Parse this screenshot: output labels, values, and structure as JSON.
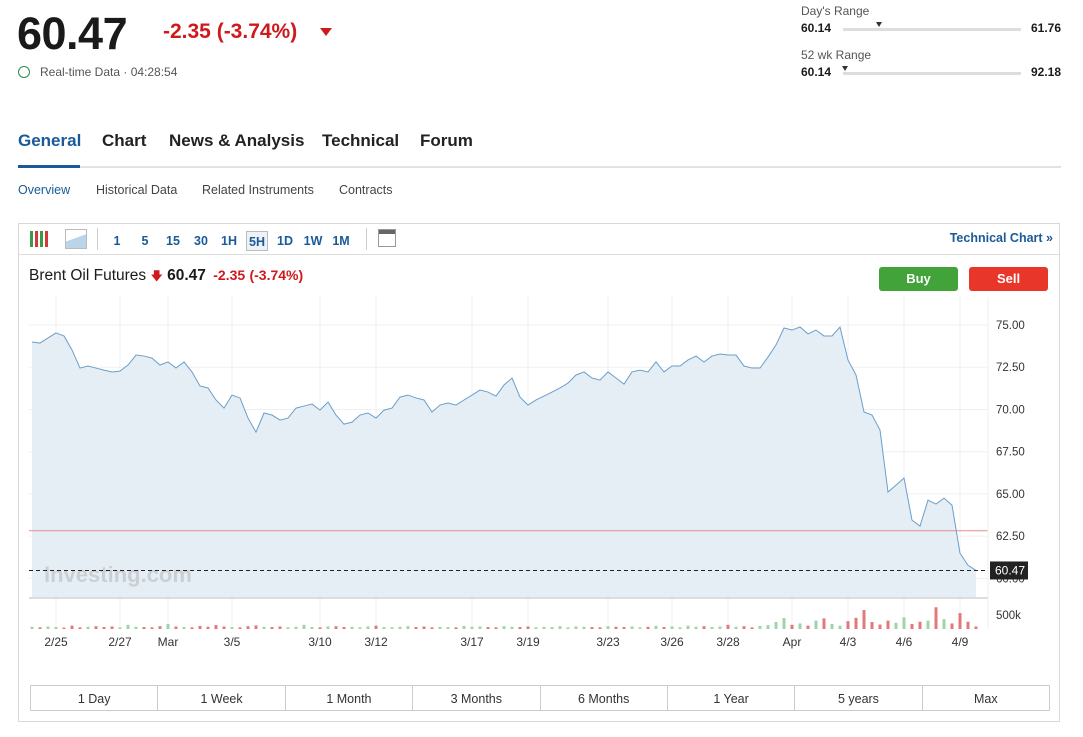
{
  "header": {
    "price": 60.47,
    "change": "-2.35 (-3.74%)",
    "realtime": "Real-time Data · 04:28:54"
  },
  "ranges": [
    {
      "label": "Day's Range",
      "low": 60.14,
      "high": 61.76
    },
    {
      "label": "52 wk Range",
      "low": 60.14,
      "high": 92.18
    }
  ],
  "tabs": [
    "General",
    "Chart",
    "News & Analysis",
    "Technical",
    "Forum"
  ],
  "subtabs": [
    "Overview",
    "Historical Data",
    "Related Instruments",
    "Contracts"
  ],
  "toolbar": {
    "intervals": [
      "1",
      "5",
      "15",
      "30",
      "1H",
      "5H",
      "1D",
      "1W",
      "1M"
    ],
    "selected": "5H",
    "link": "Technical Chart »"
  },
  "instrument": {
    "name": "Brent Oil Futures",
    "price": "60.47",
    "change": "-2.35",
    "percent": "(-3.74%)"
  },
  "buttons": [
    "Buy",
    "Sell"
  ],
  "watermark": "Investing.com",
  "periods": [
    "1 Day",
    "1 Week",
    "1 Month",
    "3 Months",
    "6 Months",
    "1 Year",
    "5 years",
    "Max"
  ],
  "chart_data": {
    "type": "line",
    "fill": true,
    "color": "#6a9ecb",
    "area_color": "#e6eef5",
    "grid": true,
    "categories": [
      null,
      null,
      null,
      "2/25",
      null,
      null,
      null,
      null,
      null,
      null,
      null,
      "2/27",
      null,
      null,
      null,
      null,
      null,
      "Mar",
      null,
      null,
      null,
      null,
      null,
      null,
      null,
      "3/5",
      null,
      null,
      null,
      null,
      null,
      null,
      null,
      null,
      null,
      null,
      "3/10",
      null,
      null,
      null,
      null,
      null,
      null,
      "3/12",
      null,
      null,
      null,
      null,
      null,
      null,
      null,
      null,
      null,
      null,
      null,
      "3/17",
      null,
      null,
      null,
      null,
      null,
      null,
      "3/19",
      null,
      null,
      null,
      null,
      null,
      null,
      null,
      null,
      null,
      "3/23",
      null,
      null,
      null,
      null,
      null,
      null,
      null,
      "3/26",
      null,
      null,
      null,
      null,
      null,
      null,
      "3/28",
      null,
      null,
      null,
      null,
      null,
      null,
      null,
      "Apr",
      null,
      null,
      null,
      null,
      null,
      null,
      "4/3",
      null,
      null,
      null,
      null,
      null,
      null,
      "4/6",
      null,
      null,
      null,
      null,
      null,
      null,
      "4/9",
      null,
      null
    ],
    "values": [
      73.99,
      73.93,
      74.23,
      74.53,
      74.35,
      73.52,
      72.45,
      72.57,
      72.45,
      72.33,
      72.22,
      72.27,
      72.63,
      73.22,
      73.16,
      73.04,
      72.63,
      72.81,
      72.45,
      72.81,
      72.22,
      71.39,
      71.27,
      70.56,
      70.08,
      70.85,
      70.68,
      69.49,
      68.66,
      69.79,
      69.67,
      69.37,
      69.49,
      70.08,
      70.2,
      70.32,
      69.96,
      70.44,
      69.67,
      69.13,
      69.25,
      69.67,
      69.79,
      69.49,
      69.96,
      70.08,
      70.73,
      70.85,
      70.68,
      70.56,
      69.85,
      70.26,
      70.38,
      70.26,
      70.56,
      70.85,
      71.15,
      71.03,
      70.79,
      71.45,
      71.86,
      70.73,
      70.26,
      70.56,
      70.79,
      71.03,
      71.27,
      71.56,
      72.04,
      72.22,
      71.86,
      71.74,
      72.22,
      71.86,
      71.5,
      72.22,
      72.33,
      72.22,
      72.81,
      72.22,
      72.57,
      72.57,
      72.93,
      73.16,
      72.81,
      73.16,
      73.28,
      73.22,
      73.22,
      72.57,
      72.45,
      72.45,
      73.1,
      73.82,
      74.82,
      74.7,
      74.88,
      74.47,
      74.7,
      74.35,
      74.35,
      74.88,
      72.93,
      72.04,
      69.85,
      69.67,
      68.78,
      65.11,
      65.52,
      65.94,
      63.45,
      63.09,
      64.63,
      64.4,
      64.75,
      64.34,
      61.49,
      60.78,
      60.47
    ],
    "ylim": [
      58.9,
      76.3
    ],
    "yticks": [
      {
        "value": 60,
        "label": "60.00"
      },
      {
        "value": 62.5,
        "label": "62.50"
      },
      {
        "value": 65,
        "label": "65.00"
      },
      {
        "value": 67.5,
        "label": "67.50"
      },
      {
        "value": 70,
        "label": "70.00"
      },
      {
        "value": 72.5,
        "label": "72.50"
      },
      {
        "value": 75,
        "label": "75.00"
      }
    ],
    "reference": {
      "value": 62.82,
      "color": "#e88a8a"
    },
    "current": {
      "value": 60.47,
      "label": "60.47"
    },
    "volume": {
      "up_color": "#9fd3a8",
      "down_color": "#e07a7a",
      "ylim": [
        0,
        1040000
      ],
      "yticks": [
        {
          "value": 500000,
          "label": "500k"
        }
      ],
      "values": [
        80000,
        60000,
        90000,
        70000,
        50000,
        120000,
        60000,
        80000,
        100000,
        70000,
        90000,
        60000,
        150000,
        80000,
        70000,
        60000,
        100000,
        180000,
        90000,
        70000,
        60000,
        110000,
        80000,
        140000,
        90000,
        70000,
        60000,
        100000,
        130000,
        80000,
        70000,
        90000,
        60000,
        80000,
        150000,
        70000,
        60000,
        90000,
        100000,
        70000,
        80000,
        60000,
        90000,
        120000,
        70000,
        60000,
        80000,
        100000,
        70000,
        90000,
        60000,
        80000,
        70000,
        60000,
        110000,
        80000,
        90000,
        70000,
        60000,
        100000,
        80000,
        70000,
        90000,
        60000,
        80000,
        70000,
        100000,
        60000,
        90000,
        80000,
        70000,
        60000,
        100000,
        80000,
        70000,
        90000,
        60000,
        80000,
        110000,
        70000,
        90000,
        60000,
        120000,
        80000,
        100000,
        70000,
        90000,
        150000,
        80000,
        100000,
        60000,
        110000,
        140000,
        250000,
        390000,
        150000,
        200000,
        120000,
        300000,
        380000,
        180000,
        120000,
        280000,
        400000,
        680000,
        250000,
        160000,
        300000,
        220000,
        420000,
        180000,
        260000,
        300000,
        780000,
        350000,
        200000,
        570000,
        260000,
        90000
      ]
    }
  }
}
